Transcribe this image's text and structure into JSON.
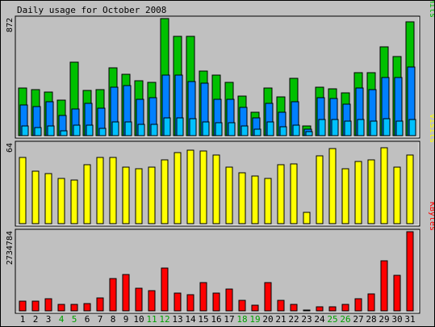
{
  "title": "Daily usage for October 2008",
  "colors": {
    "hits": "#00c000",
    "files": "#0080ff",
    "pages": "#00c0ff",
    "visits": "#ffff00",
    "kbytes": "#ff0000",
    "panel_bg": "#c0c0c0",
    "weekday_label": "#000000",
    "weekend_label": "#00a000"
  },
  "chart_data": [
    {
      "type": "bar",
      "name": "hits-files-pages",
      "right_label": [
        {
          "text": "Pages",
          "color": "#00c0ff"
        },
        {
          "text": "/",
          "color": "#000000"
        },
        {
          "text": "Files",
          "color": "#0080ff"
        },
        {
          "text": "/",
          "color": "#000000"
        },
        {
          "text": "Hits",
          "color": "#00c000"
        }
      ],
      "ymax_label": "872",
      "ylim": [
        0,
        872
      ],
      "categories": [
        "1",
        "2",
        "3",
        "4",
        "5",
        "6",
        "7",
        "8",
        "9",
        "10",
        "11",
        "12",
        "13",
        "14",
        "15",
        "16",
        "17",
        "18",
        "19",
        "20",
        "21",
        "22",
        "23",
        "24",
        "25",
        "26",
        "27",
        "28",
        "29",
        "30",
        "31"
      ],
      "series": [
        {
          "name": "Hits",
          "values": [
            352,
            341,
            324,
            262,
            546,
            334,
            341,
            508,
            458,
            410,
            395,
            872,
            740,
            740,
            484,
            450,
            395,
            293,
            177,
            352,
            290,
            425,
            70,
            360,
            346,
            318,
            470,
            470,
            662,
            590,
            849
          ]
        },
        {
          "name": "Files",
          "values": [
            231,
            218,
            250,
            150,
            196,
            240,
            205,
            359,
            370,
            270,
            285,
            450,
            451,
            401,
            390,
            270,
            270,
            210,
            130,
            240,
            177,
            250,
            48,
            285,
            275,
            235,
            352,
            345,
            435,
            430,
            510
          ]
        },
        {
          "name": "Pages",
          "values": [
            74,
            62,
            70,
            37,
            78,
            80,
            54,
            100,
            100,
            85,
            85,
            130,
            135,
            125,
            100,
            95,
            95,
            70,
            48,
            100,
            65,
            80,
            30,
            120,
            120,
            110,
            120,
            110,
            125,
            110,
            120
          ]
        }
      ]
    },
    {
      "type": "bar",
      "name": "visits",
      "right_label": [
        {
          "text": "Visits",
          "color": "#ffff00"
        }
      ],
      "ymax_label": "64",
      "ylim": [
        0,
        64
      ],
      "categories": [
        "1",
        "2",
        "3",
        "4",
        "5",
        "6",
        "7",
        "8",
        "9",
        "10",
        "11",
        "12",
        "13",
        "14",
        "15",
        "16",
        "17",
        "18",
        "19",
        "20",
        "21",
        "22",
        "23",
        "24",
        "25",
        "26",
        "27",
        "28",
        "29",
        "30",
        "31"
      ],
      "series": [
        {
          "name": "Visits",
          "values": [
            53,
            42,
            40,
            36,
            35,
            47,
            53,
            53,
            45,
            44,
            45,
            51,
            57,
            59,
            58,
            55,
            45,
            41,
            38,
            36,
            47,
            48,
            9,
            54,
            60,
            44,
            50,
            51,
            61,
            45,
            55
          ]
        }
      ]
    },
    {
      "type": "bar",
      "name": "kbytes",
      "right_label": [
        {
          "text": "KBytes",
          "color": "#ff0000"
        }
      ],
      "ymax_label": "2734784",
      "ylim": [
        0,
        2734784
      ],
      "categories": [
        "1",
        "2",
        "3",
        "4",
        "5",
        "6",
        "7",
        "8",
        "9",
        "10",
        "11",
        "12",
        "13",
        "14",
        "15",
        "16",
        "17",
        "18",
        "19",
        "20",
        "21",
        "22",
        "23",
        "24",
        "25",
        "26",
        "27",
        "28",
        "29",
        "30",
        "31"
      ],
      "series": [
        {
          "name": "KBytes",
          "values": [
            325000,
            340000,
            420000,
            225000,
            213000,
            245000,
            445000,
            1105000,
            1265000,
            785000,
            695000,
            1480000,
            605000,
            555000,
            963000,
            620000,
            765000,
            375000,
            183000,
            979000,
            364000,
            225000,
            24000,
            145000,
            149000,
            215000,
            420000,
            595000,
            1727000,
            1233000,
            2734784
          ]
        }
      ]
    }
  ],
  "x_labels": [
    {
      "text": "1",
      "weekend": false
    },
    {
      "text": "2",
      "weekend": false
    },
    {
      "text": "3",
      "weekend": false
    },
    {
      "text": "4",
      "weekend": true
    },
    {
      "text": "5",
      "weekend": true
    },
    {
      "text": "6",
      "weekend": false
    },
    {
      "text": "7",
      "weekend": false
    },
    {
      "text": "8",
      "weekend": false
    },
    {
      "text": "9",
      "weekend": false
    },
    {
      "text": "10",
      "weekend": false
    },
    {
      "text": "11",
      "weekend": true
    },
    {
      "text": "12",
      "weekend": true
    },
    {
      "text": "13",
      "weekend": false
    },
    {
      "text": "14",
      "weekend": false
    },
    {
      "text": "15",
      "weekend": false
    },
    {
      "text": "16",
      "weekend": false
    },
    {
      "text": "17",
      "weekend": false
    },
    {
      "text": "18",
      "weekend": true
    },
    {
      "text": "19",
      "weekend": true
    },
    {
      "text": "20",
      "weekend": false
    },
    {
      "text": "21",
      "weekend": false
    },
    {
      "text": "22",
      "weekend": false
    },
    {
      "text": "23",
      "weekend": false
    },
    {
      "text": "24",
      "weekend": false
    },
    {
      "text": "25",
      "weekend": true
    },
    {
      "text": "26",
      "weekend": true
    },
    {
      "text": "27",
      "weekend": false
    },
    {
      "text": "28",
      "weekend": false
    },
    {
      "text": "29",
      "weekend": false
    },
    {
      "text": "30",
      "weekend": false
    },
    {
      "text": "31",
      "weekend": false
    }
  ]
}
